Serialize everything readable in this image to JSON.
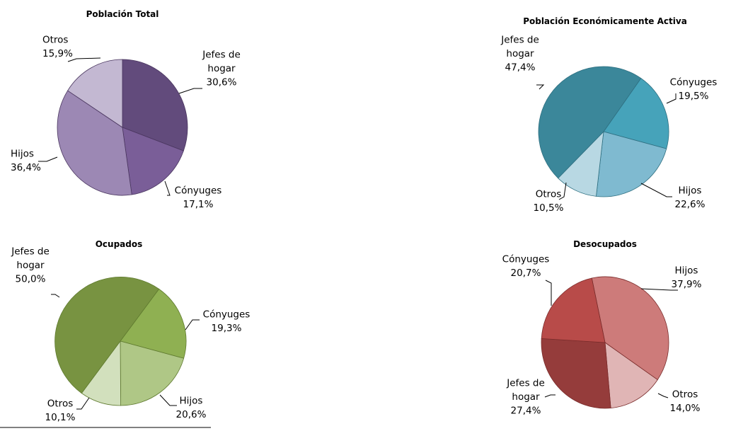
{
  "chart_data": [
    {
      "type": "pie",
      "title": "Población Total",
      "slices": [
        {
          "label_lines": [
            "Jefes de",
            "hogar"
          ],
          "value_label": "30,6%",
          "value": 30.6,
          "color": "#624b7c"
        },
        {
          "label_lines": [
            "Cónyuges"
          ],
          "value_label": "17,1%",
          "value": 17.1,
          "color": "#7a5e98"
        },
        {
          "label_lines": [
            "Hijos"
          ],
          "value_label": "36,4%",
          "value": 36.4,
          "color": "#9c88b4"
        },
        {
          "label_lines": [
            "Otros"
          ],
          "value_label": "15,9%",
          "value": 15.9,
          "color": "#c3b8d2"
        }
      ],
      "edge_color": "#4a365f"
    },
    {
      "type": "pie",
      "title": "Población Económicamente Activa",
      "slices": [
        {
          "label_lines": [
            "Cónyuges"
          ],
          "value_label": "19,5%",
          "value": 19.5,
          "color": "#46a3ba"
        },
        {
          "label_lines": [
            "Hijos"
          ],
          "value_label": "22,6%",
          "value": 22.6,
          "color": "#7fbad0"
        },
        {
          "label_lines": [
            "Otros"
          ],
          "value_label": "10,5%",
          "value": 10.5,
          "color": "#b8d8e3"
        },
        {
          "label_lines": [
            "Jefes de",
            "hogar"
          ],
          "value_label": "47,4%",
          "value": 47.4,
          "color": "#3b879a"
        }
      ],
      "edge_color": "#2e6f80"
    },
    {
      "type": "pie",
      "title": "Ocupados",
      "slices": [
        {
          "label_lines": [
            "Cónyuges"
          ],
          "value_label": "19,3%",
          "value": 19.3,
          "color": "#8fb052"
        },
        {
          "label_lines": [
            "Hijos"
          ],
          "value_label": "20,6%",
          "value": 20.6,
          "color": "#afc786"
        },
        {
          "label_lines": [
            "Otros"
          ],
          "value_label": "10,1%",
          "value": 10.1,
          "color": "#d2e0bd"
        },
        {
          "label_lines": [
            "Jefes de",
            "hogar"
          ],
          "value_label": "50,0%",
          "value": 50.0,
          "color": "#789341"
        }
      ],
      "edge_color": "#5f7a2f"
    },
    {
      "type": "pie",
      "title": "Desocupados",
      "slices": [
        {
          "label_lines": [
            "Hijos"
          ],
          "value_label": "37,9%",
          "value": 37.9,
          "color": "#cd7b7a"
        },
        {
          "label_lines": [
            "Otros"
          ],
          "value_label": "14,0%",
          "value": 14.0,
          "color": "#e0b5b5"
        },
        {
          "label_lines": [
            "Jefes de",
            "hogar"
          ],
          "value_label": "27,4%",
          "value": 27.4,
          "color": "#953c3b"
        },
        {
          "label_lines": [
            "Cónyuges"
          ],
          "value_label": "20,7%",
          "value": 20.7,
          "color": "#b84b49"
        }
      ],
      "edge_color": "#7a2c2b"
    }
  ]
}
